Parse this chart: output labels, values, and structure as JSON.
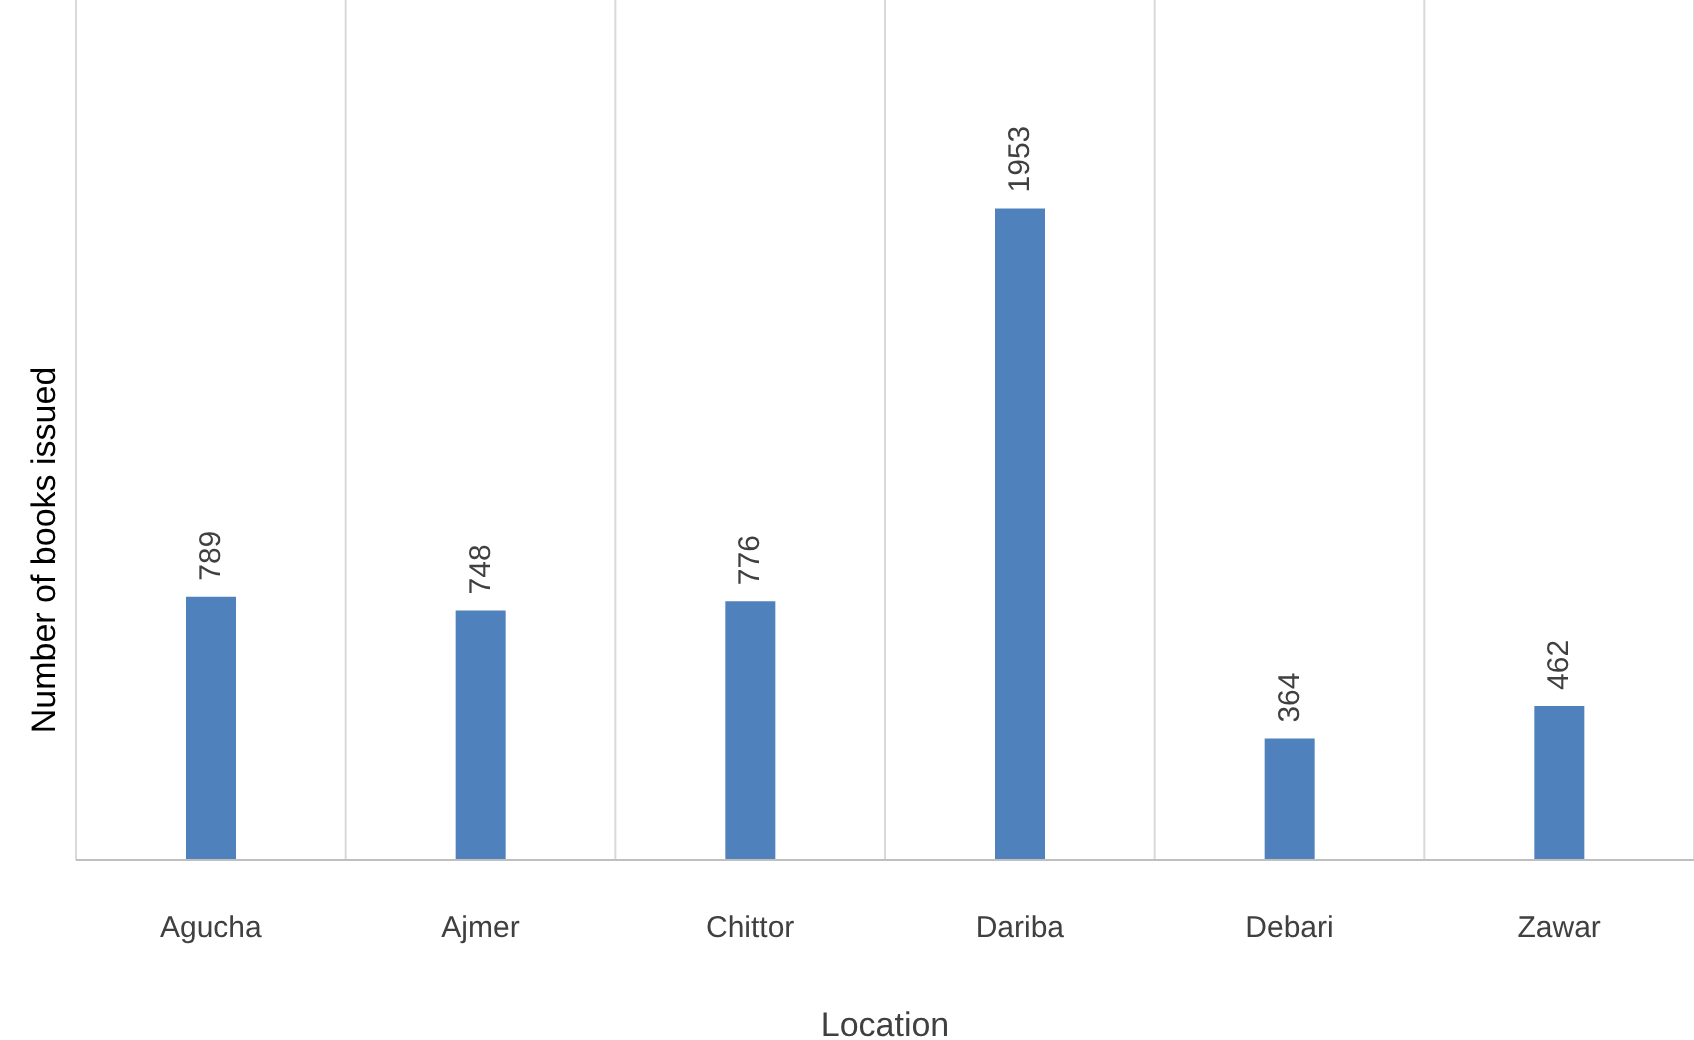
{
  "chart_data": {
    "type": "bar",
    "xlabel": "Location",
    "ylabel": "Number of books issued",
    "categories": [
      "Agucha",
      "Ajmer",
      "Chittor",
      "Dariba",
      "Debari",
      "Zawar"
    ],
    "values": [
      789,
      748,
      776,
      1953,
      364,
      462
    ],
    "color": "#4f81bd",
    "tick_labels": "x",
    "data_labels": true,
    "grid": "x"
  }
}
